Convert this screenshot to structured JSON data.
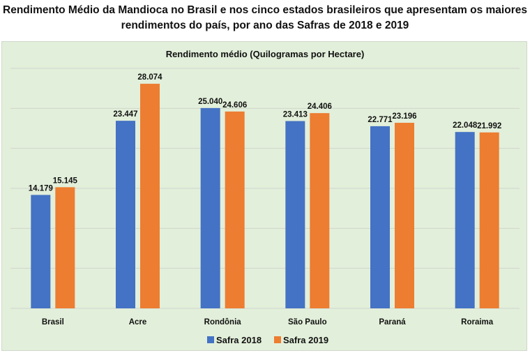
{
  "page": {
    "title_line1": "Rendimento Médio da Mandioca no Brasil e nos cinco estados brasileiros que apresentam os maiores",
    "title_line2": "rendimentos do país, por ano das Safras de 2018 e 2019"
  },
  "chart_data": {
    "type": "bar",
    "title": "Rendimento médio (Quilogramas por Hectare)",
    "xlabel": "",
    "ylabel": "",
    "ylim": [
      0,
      30
    ],
    "y_gridlines": [
      0,
      5,
      10,
      15,
      20,
      25,
      30
    ],
    "grid": true,
    "y_axis_labels_visible": false,
    "legend_position": "bottom",
    "categories": [
      "Brasil",
      "Acre",
      "Rondônia",
      "São Paulo",
      "Paraná",
      "Roraima"
    ],
    "series": [
      {
        "name": "Safra 2018",
        "color": "#4472c4",
        "values": [
          14.179,
          23.447,
          25.04,
          23.413,
          22.771,
          22.048
        ],
        "labels": [
          "14.179",
          "23.447",
          "25.040",
          "23.413",
          "22.771",
          "22.048"
        ]
      },
      {
        "name": "Safra 2019",
        "color": "#ed7d31",
        "values": [
          15.145,
          28.074,
          24.606,
          24.406,
          23.196,
          21.992
        ],
        "labels": [
          "15.145",
          "28.074",
          "24.606",
          "24.406",
          "23.196",
          "21.992"
        ]
      }
    ]
  }
}
